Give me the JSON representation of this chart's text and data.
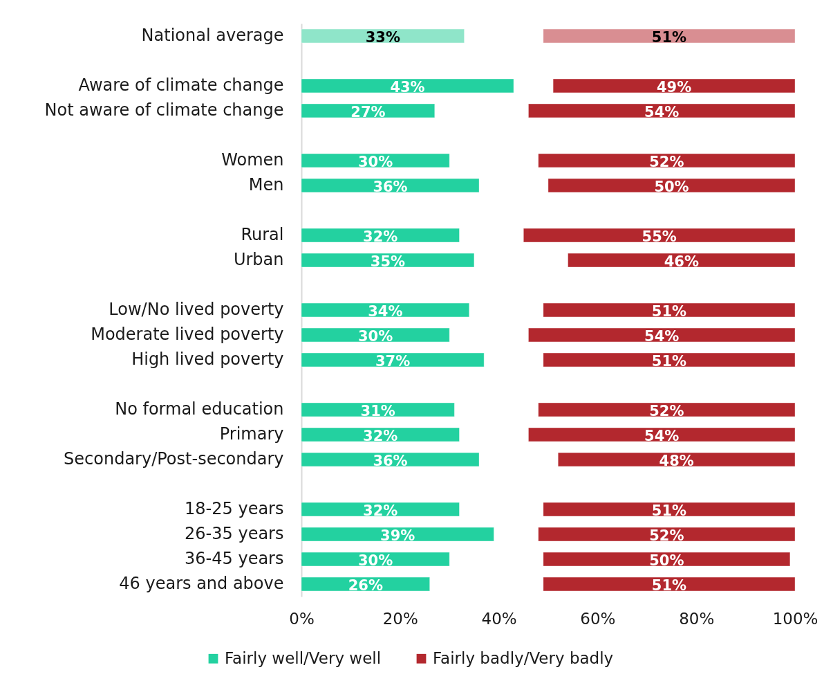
{
  "chart_data": {
    "type": "bar",
    "orientation": "horizontal",
    "categories": [
      "National average",
      null,
      "Aware of climate change",
      "Not aware of climate change",
      null,
      "Women",
      "Men",
      null,
      "Rural",
      "Urban",
      null,
      "Low/No lived poverty",
      "Moderate lived poverty",
      "High lived poverty",
      null,
      "No formal education",
      "Primary",
      "Secondary/Post-secondary",
      null,
      "18-25 years",
      "26-35 years",
      "36-45 years",
      "46 years and above"
    ],
    "series": [
      {
        "name": "Fairly well/Very well",
        "color": "#23d1a0",
        "colors": [
          "#8fe5c9",
          null,
          "#23d1a0",
          "#23d1a0",
          null,
          "#23d1a0",
          "#23d1a0",
          null,
          "#23d1a0",
          "#23d1a0",
          null,
          "#23d1a0",
          "#23d1a0",
          "#23d1a0",
          null,
          "#23d1a0",
          "#23d1a0",
          "#23d1a0",
          null,
          "#23d1a0",
          "#23d1a0",
          "#23d1a0",
          "#23d1a0"
        ],
        "base": [
          0,
          null,
          0,
          0,
          null,
          0,
          0,
          null,
          0,
          0,
          null,
          0,
          0,
          0,
          null,
          0,
          0,
          0,
          null,
          0,
          0,
          0,
          0
        ],
        "values": [
          33,
          null,
          43,
          27,
          null,
          30,
          36,
          null,
          32,
          35,
          null,
          34,
          30,
          37,
          null,
          31,
          32,
          36,
          null,
          32,
          39,
          30,
          26
        ],
        "value_labels": [
          "33%",
          null,
          "43%",
          "27%",
          null,
          "30%",
          "36%",
          null,
          "32%",
          "35%",
          null,
          "34%",
          "30%",
          "37%",
          null,
          "31%",
          "32%",
          "36%",
          null,
          "32%",
          "39%",
          "30%",
          "26%"
        ]
      },
      {
        "name": "Fairly badly/Very badly",
        "color": "#b3282e",
        "colors": [
          "#d98e92",
          null,
          "#b3282e",
          "#b3282e",
          null,
          "#b3282e",
          "#b3282e",
          null,
          "#b3282e",
          "#b3282e",
          null,
          "#b3282e",
          "#b3282e",
          "#b3282e",
          null,
          "#b3282e",
          "#b3282e",
          "#b3282e",
          null,
          "#b3282e",
          "#b3282e",
          "#b3282e",
          "#b3282e"
        ],
        "base": [
          49,
          null,
          51,
          46,
          null,
          48,
          50,
          null,
          45,
          54,
          null,
          49,
          46,
          49,
          null,
          48,
          46,
          52,
          null,
          49,
          48,
          49,
          49
        ],
        "values": [
          51,
          null,
          49,
          54,
          null,
          52,
          50,
          null,
          55,
          46,
          null,
          51,
          54,
          51,
          null,
          52,
          54,
          48,
          null,
          51,
          52,
          50,
          51
        ],
        "value_labels": [
          "51%",
          null,
          "49%",
          "54%",
          null,
          "52%",
          "50%",
          null,
          "55%",
          "46%",
          null,
          "51%",
          "54%",
          "51%",
          null,
          "52%",
          "54%",
          "48%",
          null,
          "51%",
          "52%",
          "50%",
          "51%"
        ]
      }
    ],
    "xlim": [
      0,
      100
    ],
    "xticks": [
      {
        "value": 0,
        "label": "0%"
      },
      {
        "value": 20,
        "label": "20%"
      },
      {
        "value": 40,
        "label": "40%"
      },
      {
        "value": 60,
        "label": "60%"
      },
      {
        "value": 80,
        "label": "80%"
      },
      {
        "value": 100,
        "label": "100%"
      }
    ],
    "legend": "bottom"
  }
}
